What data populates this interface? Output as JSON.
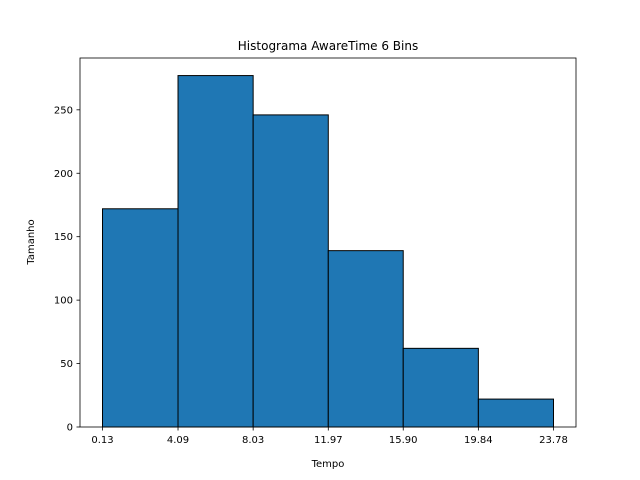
{
  "chart_data": {
    "type": "bar",
    "title": "Histograma AwareTime 6 Bins",
    "xlabel": "Tempo",
    "ylabel": "Tamanho",
    "bin_edges": [
      0.13,
      4.09,
      8.03,
      11.97,
      15.9,
      19.84,
      23.78
    ],
    "x_tick_labels": [
      "0.13",
      "4.09",
      "8.03",
      "11.97",
      "15.90",
      "19.84",
      "23.78"
    ],
    "values": [
      172,
      277,
      246,
      139,
      62,
      22
    ],
    "y_ticks": [
      0,
      50,
      100,
      150,
      200,
      250
    ],
    "ylim": [
      0,
      290.85
    ],
    "xlim": [
      -1.05,
      24.96
    ],
    "bar_color": "#1f77b4",
    "edge_color": "#000000",
    "grid": false,
    "legend": "none"
  }
}
